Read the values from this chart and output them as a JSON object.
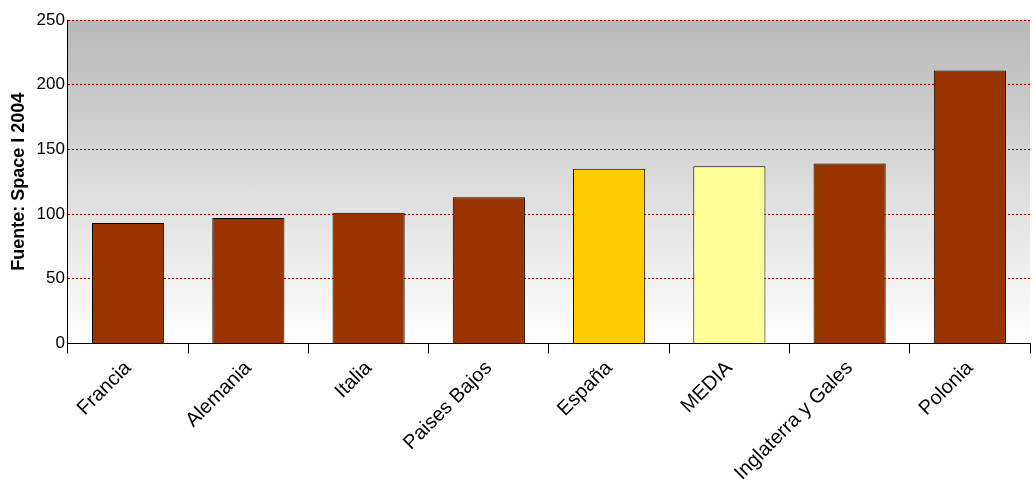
{
  "chart_data": {
    "type": "bar",
    "ylabel": "Fuente: Space I 2004",
    "categories": [
      "Francia",
      "Alemania",
      "Italia",
      "Paises Bajos",
      "España",
      "MEDIA",
      "Inglaterra y Gales",
      "Polonia"
    ],
    "values": [
      93,
      97,
      101,
      113,
      135,
      137,
      139,
      211
    ],
    "colors": [
      "#993300",
      "#993300",
      "#993300",
      "#993300",
      "#ffcc00",
      "#ffff99",
      "#993300",
      "#993300"
    ],
    "ylim": [
      0,
      250
    ],
    "yticks": [
      0,
      50,
      100,
      150,
      200,
      250
    ],
    "grid": "y",
    "legend": false
  }
}
